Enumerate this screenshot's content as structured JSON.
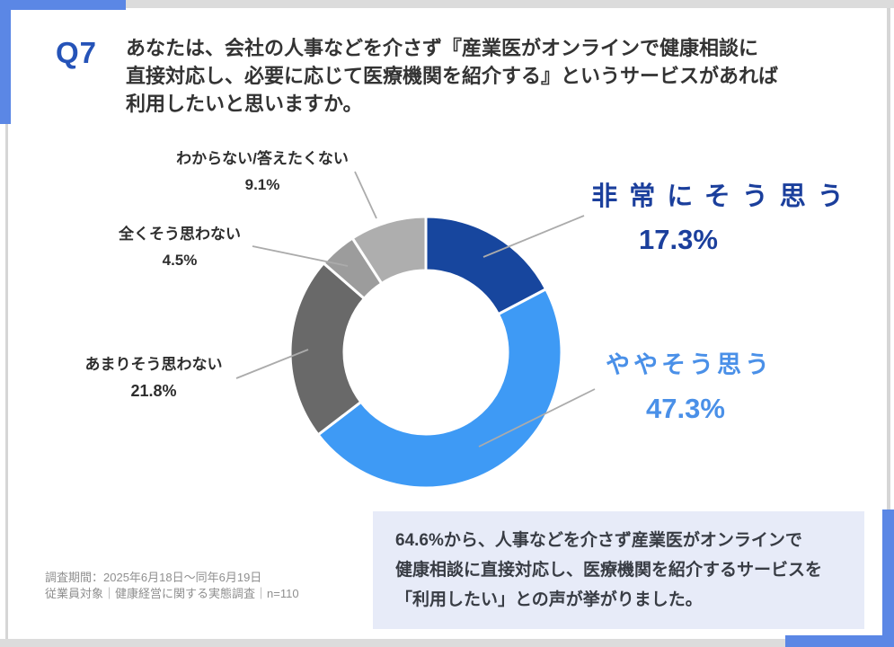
{
  "slide": {
    "question_number": "Q7",
    "question_lines": [
      "あなたは、会社の人事などを介さず『産業医がオンラインで健康相談に",
      "直接対応し、必要に応じて医療機関を紹介する』というサービスがあれば",
      "利用したいと思いますか。"
    ],
    "source_lines": [
      "調査期間：2025年6月18日～同年6月19日",
      "従業員対象｜健康経営に関する実態調査｜n=110"
    ],
    "summary_lines": [
      "64.6%から、人事などを介さず産業医がオンラインで",
      "健康相談に直接対応し、医療機関を紹介するサービスを",
      "「利用したい」との声が挙がりました。"
    ]
  },
  "chart_data": {
    "type": "pie",
    "subtype": "donut",
    "title": "",
    "categories": [
      "非常にそう思う",
      "ややそう思う",
      "あまりそう思わない",
      "全くそう思わない",
      "わからない/答えたくない"
    ],
    "values": [
      17.3,
      47.3,
      21.8,
      4.5,
      9.1
    ],
    "unit": "%",
    "colors": [
      "#17469e",
      "#3e9af5",
      "#696969",
      "#9c9c9c",
      "#aeaeae"
    ],
    "start_angle_deg": 0,
    "direction": "clockwise",
    "legend_position": "callouts",
    "callouts": [
      {
        "label": "非常にそう思う",
        "pct": "17.3%"
      },
      {
        "label": "ややそう思う",
        "pct": "47.3%"
      },
      {
        "label": "あまりそう思わない",
        "pct": "21.8%"
      },
      {
        "label": "全くそう思わない",
        "pct": "4.5%"
      },
      {
        "label": "わからない/答えたくない",
        "pct": "9.1%"
      }
    ]
  },
  "theme": {
    "frame_blue": "#5b87e5",
    "question_number_blue": "#2553b8",
    "strong_agree_text": "#1b3f9c",
    "somewhat_agree_text": "#4a90e8",
    "summary_box_bg": "#e7ebf8",
    "leader_line_color": "#ababab"
  }
}
